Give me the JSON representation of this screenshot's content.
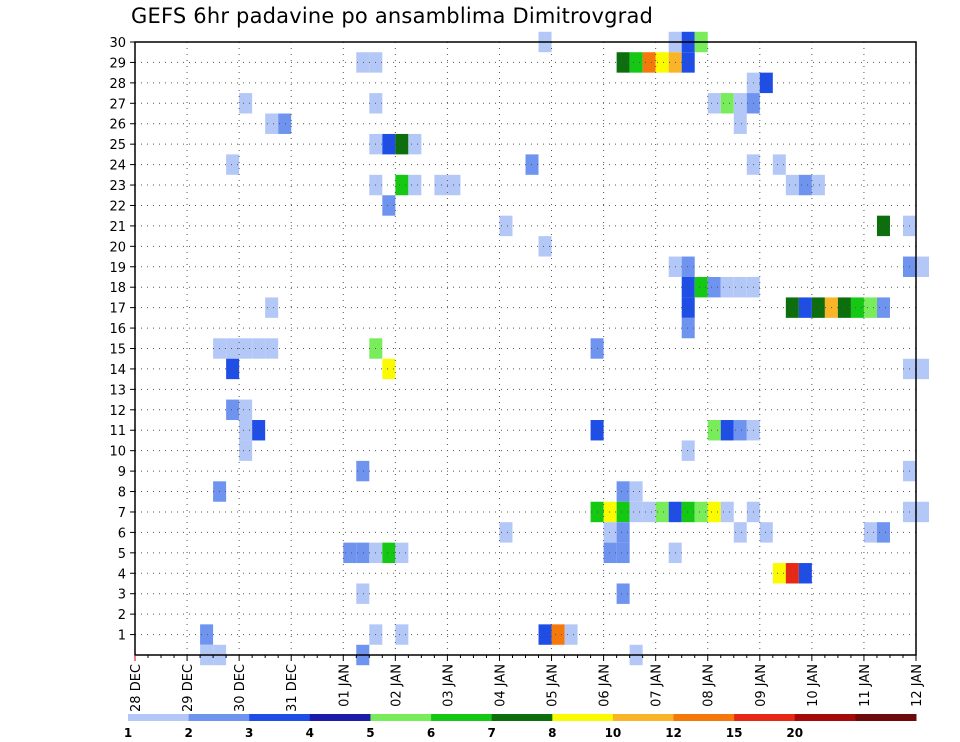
{
  "chart_data": {
    "type": "heatmap",
    "title": "GEFS 6hr padavine po ansamblima Dimitrovgrad",
    "y_ticks": [
      1,
      2,
      3,
      4,
      5,
      6,
      7,
      8,
      9,
      10,
      11,
      12,
      13,
      14,
      15,
      16,
      17,
      18,
      19,
      20,
      21,
      22,
      23,
      24,
      25,
      26,
      27,
      28,
      29,
      30
    ],
    "ylim": [
      0,
      30
    ],
    "x_ticks": [
      "28 DEC",
      "29 DEC",
      "30 DEC",
      "31 DEC",
      "01 JAN",
      "02 JAN",
      "03 JAN",
      "04 JAN",
      "05 JAN",
      "06 JAN",
      "07 JAN",
      "08 JAN",
      "09 JAN",
      "10 JAN",
      "11 JAN",
      "12 JAN"
    ],
    "steps_per_day": 4,
    "grid": true,
    "legend_position": "bottom",
    "legend": {
      "labels": [
        "1",
        "2",
        "3",
        "4",
        "5",
        "6",
        "7",
        "8",
        "10",
        "12",
        "15",
        "20"
      ],
      "colors": [
        "#b4c8f8",
        "#6e94f0",
        "#1e4ee6",
        "#1c1ca8",
        "#78ec5a",
        "#14c814",
        "#0c6e0c",
        "#fafa00",
        "#fab428",
        "#f5780a",
        "#e62814",
        "#a50a0a",
        "#6e0a0a"
      ]
    },
    "cells": [
      {
        "member": 30,
        "step": 31,
        "value": 1
      },
      {
        "member": 30,
        "step": 41,
        "value": 1
      },
      {
        "member": 30,
        "step": 42,
        "value": 3
      },
      {
        "member": 30,
        "step": 43,
        "value": 5
      },
      {
        "member": 29,
        "step": 17,
        "value": 1
      },
      {
        "member": 29,
        "step": 18,
        "value": 1
      },
      {
        "member": 29,
        "step": 37,
        "value": 7
      },
      {
        "member": 29,
        "step": 38,
        "value": 6
      },
      {
        "member": 29,
        "step": 39,
        "value": 12
      },
      {
        "member": 29,
        "step": 40,
        "value": 8
      },
      {
        "member": 29,
        "step": 41,
        "value": 10
      },
      {
        "member": 29,
        "step": 42,
        "value": 3
      },
      {
        "member": 28,
        "step": 47,
        "value": 1
      },
      {
        "member": 28,
        "step": 48,
        "value": 3
      },
      {
        "member": 27,
        "step": 8,
        "value": 1
      },
      {
        "member": 27,
        "step": 18,
        "value": 1
      },
      {
        "member": 27,
        "step": 44,
        "value": 1
      },
      {
        "member": 27,
        "step": 45,
        "value": 5
      },
      {
        "member": 27,
        "step": 46,
        "value": 1
      },
      {
        "member": 27,
        "step": 47,
        "value": 2
      },
      {
        "member": 26,
        "step": 10,
        "value": 1
      },
      {
        "member": 26,
        "step": 11,
        "value": 2
      },
      {
        "member": 26,
        "step": 46,
        "value": 1
      },
      {
        "member": 25,
        "step": 18,
        "value": 1
      },
      {
        "member": 25,
        "step": 19,
        "value": 3
      },
      {
        "member": 25,
        "step": 20,
        "value": 7
      },
      {
        "member": 25,
        "step": 21,
        "value": 1
      },
      {
        "member": 24,
        "step": 7,
        "value": 1
      },
      {
        "member": 24,
        "step": 30,
        "value": 2
      },
      {
        "member": 24,
        "step": 47,
        "value": 1
      },
      {
        "member": 24,
        "step": 49,
        "value": 1
      },
      {
        "member": 23,
        "step": 18,
        "value": 1
      },
      {
        "member": 23,
        "step": 20,
        "value": 6
      },
      {
        "member": 23,
        "step": 21,
        "value": 1
      },
      {
        "member": 23,
        "step": 23,
        "value": 1
      },
      {
        "member": 23,
        "step": 24,
        "value": 1
      },
      {
        "member": 23,
        "step": 50,
        "value": 1
      },
      {
        "member": 23,
        "step": 51,
        "value": 2
      },
      {
        "member": 23,
        "step": 52,
        "value": 1
      },
      {
        "member": 22,
        "step": 19,
        "value": 2
      },
      {
        "member": 21,
        "step": 28,
        "value": 1
      },
      {
        "member": 21,
        "step": 57,
        "value": 7
      },
      {
        "member": 21,
        "step": 59,
        "value": 1
      },
      {
        "member": 20,
        "step": 31,
        "value": 1
      },
      {
        "member": 19,
        "step": 41,
        "value": 1
      },
      {
        "member": 19,
        "step": 42,
        "value": 2
      },
      {
        "member": 19,
        "step": 59,
        "value": 2
      },
      {
        "member": 19,
        "step": 60,
        "value": 1
      },
      {
        "member": 18,
        "step": 42,
        "value": 3
      },
      {
        "member": 18,
        "step": 43,
        "value": 6
      },
      {
        "member": 18,
        "step": 44,
        "value": 2
      },
      {
        "member": 18,
        "step": 45,
        "value": 1
      },
      {
        "member": 18,
        "step": 46,
        "value": 1
      },
      {
        "member": 18,
        "step": 47,
        "value": 1
      },
      {
        "member": 17,
        "step": 10,
        "value": 1
      },
      {
        "member": 17,
        "step": 42,
        "value": 3
      },
      {
        "member": 17,
        "step": 50,
        "value": 7
      },
      {
        "member": 17,
        "step": 51,
        "value": 3
      },
      {
        "member": 17,
        "step": 52,
        "value": 7
      },
      {
        "member": 17,
        "step": 53,
        "value": 10
      },
      {
        "member": 17,
        "step": 54,
        "value": 7
      },
      {
        "member": 17,
        "step": 55,
        "value": 6
      },
      {
        "member": 17,
        "step": 56,
        "value": 5
      },
      {
        "member": 17,
        "step": 57,
        "value": 2
      },
      {
        "member": 16,
        "step": 42,
        "value": 2
      },
      {
        "member": 15,
        "step": 6,
        "value": 1
      },
      {
        "member": 15,
        "step": 7,
        "value": 1
      },
      {
        "member": 15,
        "step": 8,
        "value": 1
      },
      {
        "member": 15,
        "step": 9,
        "value": 1
      },
      {
        "member": 15,
        "step": 10,
        "value": 1
      },
      {
        "member": 15,
        "step": 18,
        "value": 5
      },
      {
        "member": 15,
        "step": 35,
        "value": 2
      },
      {
        "member": 14,
        "step": 7,
        "value": 3
      },
      {
        "member": 14,
        "step": 19,
        "value": 8
      },
      {
        "member": 14,
        "step": 59,
        "value": 1
      },
      {
        "member": 14,
        "step": 60,
        "value": 1
      },
      {
        "member": 12,
        "step": 7,
        "value": 2
      },
      {
        "member": 12,
        "step": 8,
        "value": 1
      },
      {
        "member": 11,
        "step": 8,
        "value": 1
      },
      {
        "member": 11,
        "step": 9,
        "value": 3
      },
      {
        "member": 11,
        "step": 35,
        "value": 3
      },
      {
        "member": 11,
        "step": 44,
        "value": 5
      },
      {
        "member": 11,
        "step": 45,
        "value": 3
      },
      {
        "member": 11,
        "step": 46,
        "value": 2
      },
      {
        "member": 11,
        "step": 47,
        "value": 1
      },
      {
        "member": 10,
        "step": 8,
        "value": 1
      },
      {
        "member": 10,
        "step": 42,
        "value": 1
      },
      {
        "member": 9,
        "step": 17,
        "value": 2
      },
      {
        "member": 9,
        "step": 59,
        "value": 1
      },
      {
        "member": 8,
        "step": 6,
        "value": 2
      },
      {
        "member": 8,
        "step": 37,
        "value": 2
      },
      {
        "member": 8,
        "step": 38,
        "value": 1
      },
      {
        "member": 7,
        "step": 35,
        "value": 6
      },
      {
        "member": 7,
        "step": 36,
        "value": 8
      },
      {
        "member": 7,
        "step": 37,
        "value": 6
      },
      {
        "member": 7,
        "step": 38,
        "value": 1
      },
      {
        "member": 7,
        "step": 39,
        "value": 1
      },
      {
        "member": 7,
        "step": 40,
        "value": 5
      },
      {
        "member": 7,
        "step": 41,
        "value": 3
      },
      {
        "member": 7,
        "step": 42,
        "value": 6
      },
      {
        "member": 7,
        "step": 43,
        "value": 5
      },
      {
        "member": 7,
        "step": 44,
        "value": 8
      },
      {
        "member": 7,
        "step": 45,
        "value": 1
      },
      {
        "member": 7,
        "step": 47,
        "value": 1
      },
      {
        "member": 7,
        "step": 59,
        "value": 1
      },
      {
        "member": 7,
        "step": 60,
        "value": 1
      },
      {
        "member": 6,
        "step": 28,
        "value": 1
      },
      {
        "member": 6,
        "step": 36,
        "value": 1
      },
      {
        "member": 6,
        "step": 37,
        "value": 2
      },
      {
        "member": 6,
        "step": 46,
        "value": 1
      },
      {
        "member": 6,
        "step": 48,
        "value": 1
      },
      {
        "member": 6,
        "step": 56,
        "value": 1
      },
      {
        "member": 6,
        "step": 57,
        "value": 2
      },
      {
        "member": 5,
        "step": 16,
        "value": 2
      },
      {
        "member": 5,
        "step": 17,
        "value": 2
      },
      {
        "member": 5,
        "step": 18,
        "value": 1
      },
      {
        "member": 5,
        "step": 19,
        "value": 6
      },
      {
        "member": 5,
        "step": 20,
        "value": 1
      },
      {
        "member": 5,
        "step": 36,
        "value": 2
      },
      {
        "member": 5,
        "step": 37,
        "value": 2
      },
      {
        "member": 5,
        "step": 41,
        "value": 1
      },
      {
        "member": 4,
        "step": 49,
        "value": 8
      },
      {
        "member": 4,
        "step": 50,
        "value": 15
      },
      {
        "member": 4,
        "step": 51,
        "value": 3
      },
      {
        "member": 3,
        "step": 17,
        "value": 1
      },
      {
        "member": 3,
        "step": 37,
        "value": 2
      },
      {
        "member": 1,
        "step": 5,
        "value": 2
      },
      {
        "member": 1,
        "step": 18,
        "value": 1
      },
      {
        "member": 1,
        "step": 20,
        "value": 1
      },
      {
        "member": 1,
        "step": 31,
        "value": 3
      },
      {
        "member": 1,
        "step": 32,
        "value": 12
      },
      {
        "member": 1,
        "step": 33,
        "value": 1
      },
      {
        "member": 0,
        "step": 5,
        "value": 1
      },
      {
        "member": 0,
        "step": 6,
        "value": 1
      },
      {
        "member": 0,
        "step": 17,
        "value": 2
      },
      {
        "member": 0,
        "step": 38,
        "value": 1
      }
    ]
  }
}
